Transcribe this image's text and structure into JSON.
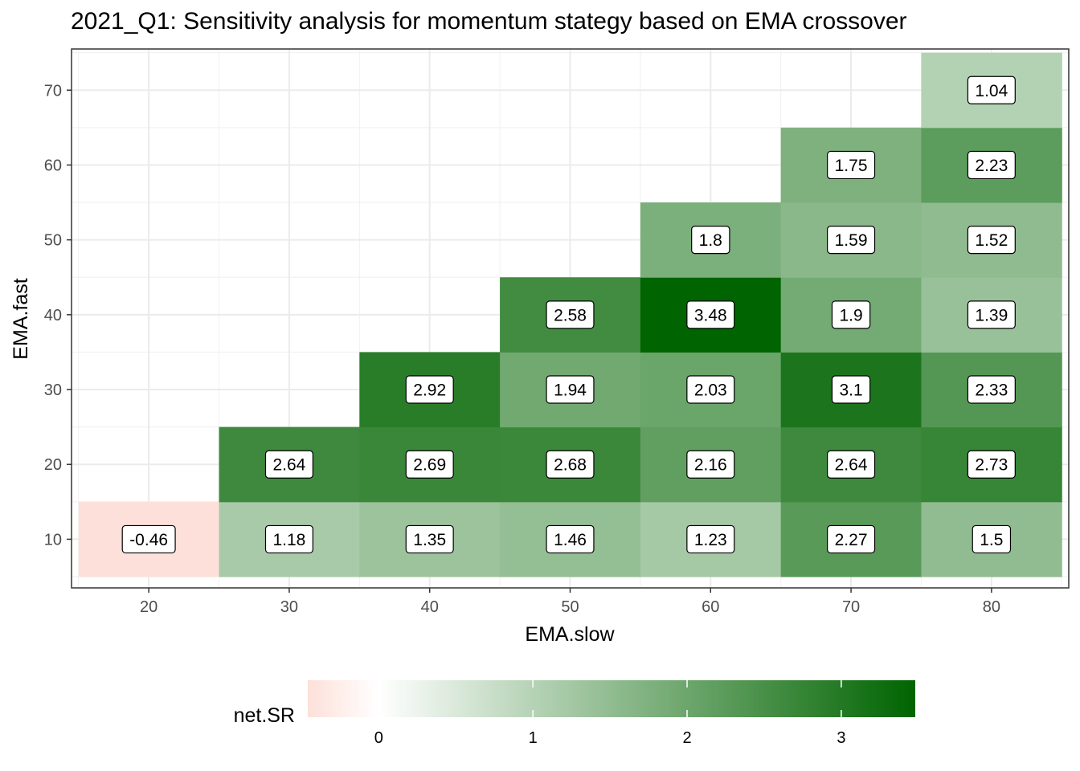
{
  "chart_data": {
    "type": "heatmap",
    "title": "2021_Q1: Sensitivity analysis for momentum stategy based on EMA crossover",
    "xlabel": "EMA.slow",
    "ylabel": "EMA.fast",
    "x_ticks": [
      20,
      30,
      40,
      50,
      60,
      70,
      80
    ],
    "y_ticks": [
      10,
      20,
      30,
      40,
      50,
      60,
      70
    ],
    "xlim": [
      14.5,
      85.5
    ],
    "ylim": [
      3.5,
      75.5
    ],
    "grid": true,
    "cells": [
      {
        "x": 20,
        "y": 10,
        "value": -0.46
      },
      {
        "x": 30,
        "y": 10,
        "value": 1.18
      },
      {
        "x": 40,
        "y": 10,
        "value": 1.35
      },
      {
        "x": 50,
        "y": 10,
        "value": 1.46
      },
      {
        "x": 60,
        "y": 10,
        "value": 1.23
      },
      {
        "x": 70,
        "y": 10,
        "value": 2.27
      },
      {
        "x": 80,
        "y": 10,
        "value": 1.5
      },
      {
        "x": 30,
        "y": 20,
        "value": 2.64
      },
      {
        "x": 40,
        "y": 20,
        "value": 2.69
      },
      {
        "x": 50,
        "y": 20,
        "value": 2.68
      },
      {
        "x": 60,
        "y": 20,
        "value": 2.16
      },
      {
        "x": 70,
        "y": 20,
        "value": 2.64
      },
      {
        "x": 80,
        "y": 20,
        "value": 2.73
      },
      {
        "x": 40,
        "y": 30,
        "value": 2.92
      },
      {
        "x": 50,
        "y": 30,
        "value": 1.94
      },
      {
        "x": 60,
        "y": 30,
        "value": 2.03
      },
      {
        "x": 70,
        "y": 30,
        "value": 3.1
      },
      {
        "x": 80,
        "y": 30,
        "value": 2.33
      },
      {
        "x": 50,
        "y": 40,
        "value": 2.58
      },
      {
        "x": 60,
        "y": 40,
        "value": 3.48
      },
      {
        "x": 70,
        "y": 40,
        "value": 1.9
      },
      {
        "x": 80,
        "y": 40,
        "value": 1.39
      },
      {
        "x": 60,
        "y": 50,
        "value": 1.8
      },
      {
        "x": 70,
        "y": 50,
        "value": 1.59
      },
      {
        "x": 80,
        "y": 50,
        "value": 1.52
      },
      {
        "x": 70,
        "y": 60,
        "value": 1.75
      },
      {
        "x": 80,
        "y": 60,
        "value": 2.23
      },
      {
        "x": 80,
        "y": 70,
        "value": 1.04
      }
    ],
    "legend": {
      "title": "net.SR",
      "position": "bottom",
      "ticks": [
        0,
        1,
        2,
        3
      ],
      "range": [
        -0.46,
        3.48
      ],
      "colors": {
        "low": "#fde0d9",
        "mid": "#ffffff",
        "high": "#006400"
      }
    }
  }
}
